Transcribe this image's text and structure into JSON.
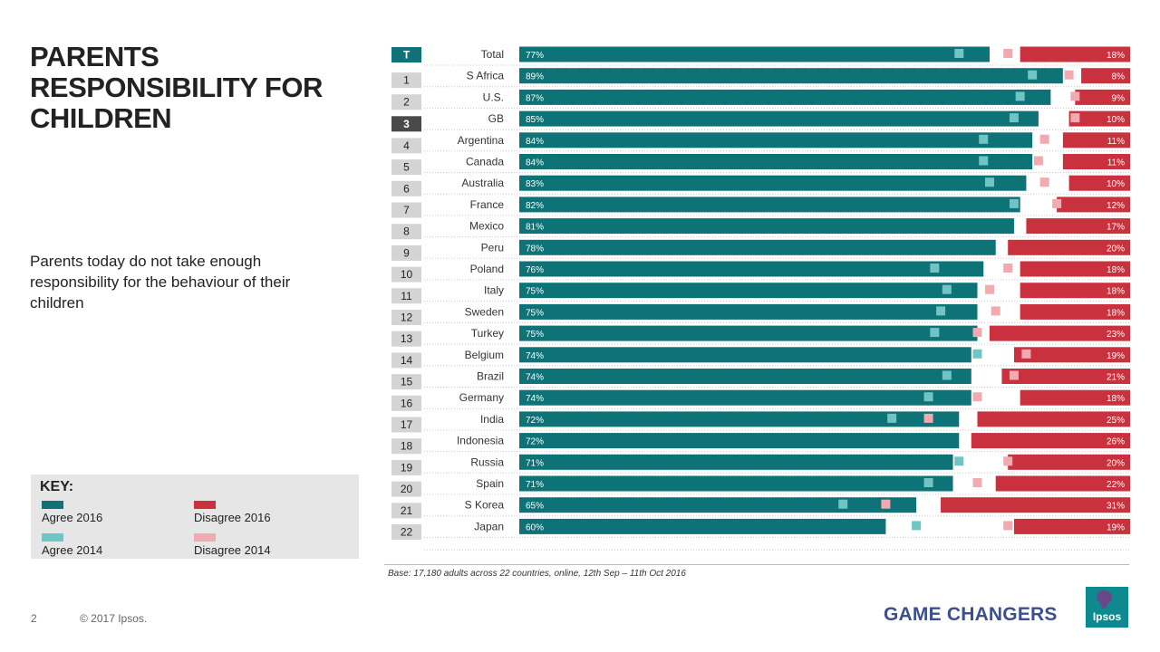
{
  "title": "PARENTS RESPONSIBILITY FOR CHILDREN",
  "subtitle": "Parents today do not take enough responsibility for the behaviour of their children",
  "key": {
    "title": "KEY:",
    "items": [
      {
        "label": "Agree 2016",
        "color": "#0d7377"
      },
      {
        "label": "Disagree 2016",
        "color": "#c8313d"
      },
      {
        "label": "Agree 2014",
        "color": "#71c4c4"
      },
      {
        "label": "Disagree 2014",
        "color": "#f0aab0"
      }
    ]
  },
  "footer": {
    "base_note": "Base: 17,180 adults across 22 countries, online, 12th Sep – 11th Oct 2016",
    "page_number": "2",
    "copyright": "© 2017 Ipsos.",
    "tagline": "GAME CHANGERS",
    "logo_text": "Ipsos"
  },
  "chart_data": {
    "type": "bar",
    "title": "",
    "xlabel": "",
    "ylabel": "",
    "xlim": [
      0,
      100
    ],
    "colors": {
      "agree_2016": "#0d7377",
      "disagree_2016": "#c8313d",
      "agree_2014": "#71c4c4",
      "disagree_2014": "#f0aab0",
      "rank_box": "#d4d4d4",
      "rank_box_total": "#0d7377",
      "rank_box_highlight": "#4a4a4a"
    },
    "rows": [
      {
        "rank": "T",
        "category": "Total",
        "agree_2016": 77,
        "disagree_2016": 18,
        "agree_2014": 72,
        "disagree_2014": 80,
        "highlight": "total"
      },
      {
        "rank": "1",
        "category": "S Africa",
        "agree_2016": 89,
        "disagree_2016": 8,
        "agree_2014": 84,
        "disagree_2014": 90
      },
      {
        "rank": "2",
        "category": "U.S.",
        "agree_2016": 87,
        "disagree_2016": 9,
        "agree_2014": 82,
        "disagree_2014": 91
      },
      {
        "rank": "3",
        "category": "GB",
        "agree_2016": 85,
        "disagree_2016": 10,
        "agree_2014": 81,
        "disagree_2014": 91,
        "highlight": "dark"
      },
      {
        "rank": "4",
        "category": "Argentina",
        "agree_2016": 84,
        "disagree_2016": 11,
        "agree_2014": 76,
        "disagree_2014": 86
      },
      {
        "rank": "5",
        "category": "Canada",
        "agree_2016": 84,
        "disagree_2016": 11,
        "agree_2014": 76,
        "disagree_2014": 85
      },
      {
        "rank": "6",
        "category": "Australia",
        "agree_2016": 83,
        "disagree_2016": 10,
        "agree_2014": 77,
        "disagree_2014": 86
      },
      {
        "rank": "7",
        "category": "France",
        "agree_2016": 82,
        "disagree_2016": 12,
        "agree_2014": 81,
        "disagree_2014": 88
      },
      {
        "rank": "8",
        "category": "Mexico",
        "agree_2016": 81,
        "disagree_2016": 17,
        "agree_2014": null,
        "disagree_2014": null
      },
      {
        "rank": "9",
        "category": "Peru",
        "agree_2016": 78,
        "disagree_2016": 20,
        "agree_2014": null,
        "disagree_2014": null
      },
      {
        "rank": "10",
        "category": "Poland",
        "agree_2016": 76,
        "disagree_2016": 18,
        "agree_2014": 68,
        "disagree_2014": 80
      },
      {
        "rank": "11",
        "category": "Italy",
        "agree_2016": 75,
        "disagree_2016": 18,
        "agree_2014": 70,
        "disagree_2014": 77
      },
      {
        "rank": "12",
        "category": "Sweden",
        "agree_2016": 75,
        "disagree_2016": 18,
        "agree_2014": 69,
        "disagree_2014": 78
      },
      {
        "rank": "13",
        "category": "Turkey",
        "agree_2016": 75,
        "disagree_2016": 23,
        "agree_2014": 68,
        "disagree_2014": 75
      },
      {
        "rank": "14",
        "category": "Belgium",
        "agree_2016": 74,
        "disagree_2016": 19,
        "agree_2014": 75,
        "disagree_2014": 83
      },
      {
        "rank": "15",
        "category": "Brazil",
        "agree_2016": 74,
        "disagree_2016": 21,
        "agree_2014": 70,
        "disagree_2014": 81
      },
      {
        "rank": "16",
        "category": "Germany",
        "agree_2016": 74,
        "disagree_2016": 18,
        "agree_2014": 67,
        "disagree_2014": 75
      },
      {
        "rank": "17",
        "category": "India",
        "agree_2016": 72,
        "disagree_2016": 25,
        "agree_2014": 61,
        "disagree_2014": 67
      },
      {
        "rank": "18",
        "category": "Indonesia",
        "agree_2016": 72,
        "disagree_2016": 26,
        "agree_2014": null,
        "disagree_2014": null
      },
      {
        "rank": "19",
        "category": "Russia",
        "agree_2016": 71,
        "disagree_2016": 20,
        "agree_2014": 72,
        "disagree_2014": 80
      },
      {
        "rank": "20",
        "category": "Spain",
        "agree_2016": 71,
        "disagree_2016": 22,
        "agree_2014": 67,
        "disagree_2014": 75
      },
      {
        "rank": "21",
        "category": "S Korea",
        "agree_2016": 65,
        "disagree_2016": 31,
        "agree_2014": 53,
        "disagree_2014": 60
      },
      {
        "rank": "22",
        "category": "Japan",
        "agree_2016": 60,
        "disagree_2016": 19,
        "agree_2014": 65,
        "disagree_2014": 80
      }
    ]
  }
}
